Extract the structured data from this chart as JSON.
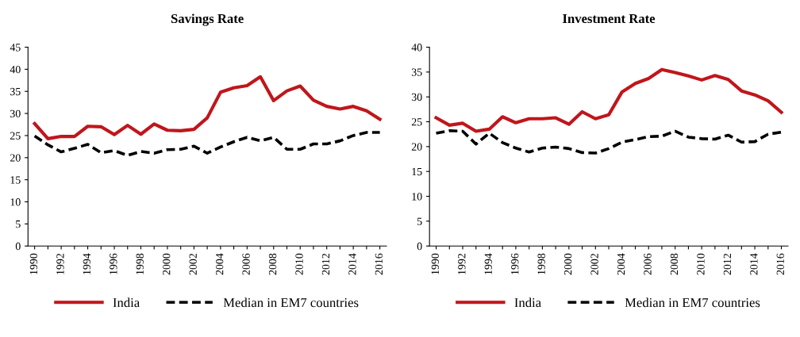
{
  "chart_data": [
    {
      "type": "line",
      "title": "Savings Rate",
      "categories": [
        "1990",
        null,
        "1992",
        null,
        "1994",
        null,
        "1996",
        null,
        "1998",
        null,
        "2000",
        null,
        "2002",
        null,
        "2004",
        null,
        "2006",
        null,
        "2008",
        null,
        "2010",
        null,
        "2012",
        null,
        "2014",
        null,
        "2016"
      ],
      "ylim": [
        0,
        45
      ],
      "yticks": [
        0,
        5,
        10,
        15,
        20,
        25,
        30,
        35,
        40,
        45
      ],
      "grid": false,
      "legend": "bottom",
      "series": [
        {
          "name": "India",
          "color": "#c0161b",
          "line_style": "solid",
          "values": [
            27.7,
            24.3,
            24.8,
            24.8,
            27.1,
            27.0,
            25.2,
            27.3,
            25.3,
            27.6,
            26.2,
            26.1,
            26.4,
            29.0,
            34.8,
            35.8,
            36.3,
            38.3,
            32.9,
            35.1,
            36.2,
            33.0,
            31.6,
            31.0,
            31.6,
            30.6,
            28.7
          ]
        },
        {
          "name": "Median in EM7 countries",
          "color": "#000000",
          "line_style": "dashed",
          "values": [
            24.9,
            22.9,
            21.3,
            22.1,
            23.0,
            21.1,
            21.6,
            20.5,
            21.4,
            21.0,
            21.8,
            21.9,
            22.6,
            21.0,
            22.4,
            23.6,
            24.6,
            23.8,
            24.6,
            21.9,
            21.9,
            23.1,
            23.1,
            23.8,
            25.0,
            25.7,
            25.7
          ]
        }
      ]
    },
    {
      "type": "line",
      "title": "Investment Rate",
      "categories": [
        "1990",
        null,
        "1992",
        null,
        "1994",
        null,
        "1996",
        null,
        "1998",
        null,
        "2000",
        null,
        "2002",
        null,
        "2004",
        null,
        "2006",
        null,
        "2008",
        null,
        "2010",
        null,
        "2012",
        null,
        "2014",
        null,
        "2016"
      ],
      "ylim": [
        0,
        40
      ],
      "yticks": [
        0,
        5,
        10,
        15,
        20,
        25,
        30,
        35,
        40
      ],
      "grid": false,
      "legend": "bottom",
      "series": [
        {
          "name": "India",
          "color": "#c0161b",
          "line_style": "solid",
          "values": [
            25.8,
            24.3,
            24.7,
            23.1,
            23.5,
            26.0,
            24.8,
            25.6,
            25.6,
            25.8,
            24.5,
            27.0,
            25.6,
            26.4,
            31.0,
            32.7,
            33.7,
            35.5,
            34.9,
            34.2,
            33.4,
            34.3,
            33.5,
            31.2,
            30.4,
            29.2,
            26.9
          ]
        },
        {
          "name": "Median in EM7 countries",
          "color": "#000000",
          "line_style": "dashed",
          "values": [
            22.7,
            23.2,
            23.1,
            20.5,
            22.7,
            20.8,
            19.7,
            18.9,
            19.7,
            19.9,
            19.6,
            18.8,
            18.7,
            19.6,
            20.9,
            21.4,
            22.0,
            22.1,
            23.1,
            21.9,
            21.6,
            21.5,
            22.3,
            20.9,
            21.0,
            22.5,
            22.9
          ]
        }
      ]
    }
  ]
}
